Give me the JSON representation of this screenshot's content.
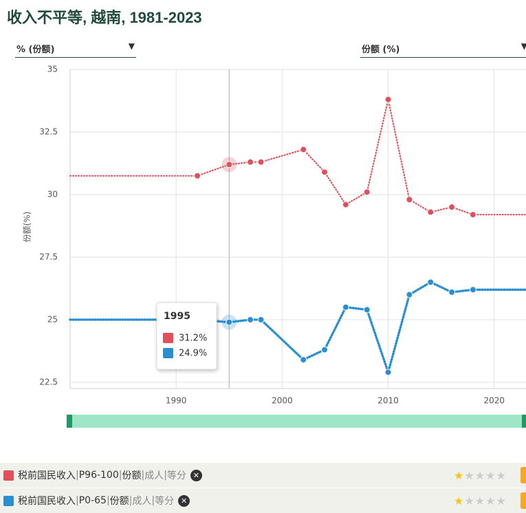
{
  "header": {
    "title": "收入不平等, 越南, 1981-2023",
    "left_select": "% (份额)",
    "right_select": "份额 (%)"
  },
  "chart_data": {
    "type": "line",
    "y_label": "份额(%)",
    "xlim": [
      1980,
      2023
    ],
    "xticks": [
      1990,
      2000,
      2010,
      2020
    ],
    "ylim": [
      22.25,
      35
    ],
    "yticks": [
      22.5,
      25,
      27.5,
      30,
      32.5,
      35
    ],
    "grid": true,
    "series": [
      {
        "name": "税前国民收入",
        "percentile": "P96-100",
        "tags": [
          "份额",
          "成人",
          "等分"
        ],
        "rating": 1,
        "color": "#e0505a",
        "x": [
          1980,
          1992,
          1995,
          1997,
          1998,
          2002,
          2004,
          2006,
          2008,
          2010,
          2012,
          2014,
          2016,
          2018,
          2023
        ],
        "values": [
          30.75,
          30.75,
          31.2,
          31.3,
          31.3,
          31.8,
          30.9,
          29.6,
          30.1,
          33.8,
          29.8,
          29.3,
          29.5,
          29.2,
          29.2
        ]
      },
      {
        "name": "税前国民收入",
        "percentile": "P0-65",
        "tags": [
          "份额",
          "成人",
          "等分"
        ],
        "rating": 1,
        "color": "#2a8fd0",
        "x": [
          1980,
          1992,
          1995,
          1997,
          1998,
          2002,
          2004,
          2006,
          2008,
          2010,
          2012,
          2014,
          2016,
          2018,
          2023
        ],
        "values": [
          25.0,
          25.0,
          24.9,
          25.0,
          25.0,
          23.4,
          23.8,
          25.5,
          25.4,
          22.9,
          26.0,
          26.5,
          26.1,
          26.2,
          26.2
        ]
      }
    ],
    "tooltip": {
      "x": 1995,
      "labels": [
        "31.2%",
        "24.9%"
      ]
    }
  }
}
